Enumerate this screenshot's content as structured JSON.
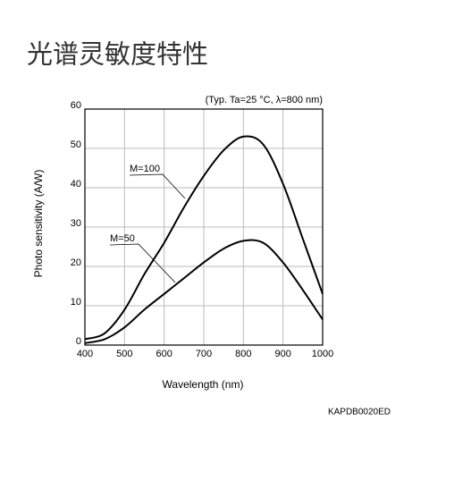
{
  "title": "光谱灵敏度特性",
  "chart_data": {
    "type": "line",
    "note": "(Typ. Ta=25 °C, λ=800 nm)",
    "xlabel": "Wavelength (nm)",
    "ylabel": "Photo sensitivity (A/W)",
    "x": [
      400,
      450,
      500,
      550,
      600,
      650,
      700,
      750,
      800,
      850,
      900,
      950,
      1000
    ],
    "series": [
      {
        "name": "M=100",
        "color": "#000000",
        "values": [
          1.5,
          3,
          9,
          18,
          26,
          35,
          43,
          49.5,
          53,
          51,
          41,
          27,
          13
        ]
      },
      {
        "name": "M=50",
        "color": "#000000",
        "values": [
          0.5,
          1.5,
          4.5,
          9,
          13,
          17,
          21,
          24.5,
          26.5,
          26,
          21,
          14,
          6.5
        ]
      }
    ],
    "xlim": [
      400,
      1000
    ],
    "xticks": [
      400,
      500,
      600,
      700,
      800,
      900,
      1000
    ],
    "ylim": [
      0,
      60
    ],
    "yticks": [
      0,
      10,
      20,
      30,
      40,
      50,
      60
    ],
    "grid": true,
    "footer": "KAPDB0020ED"
  }
}
